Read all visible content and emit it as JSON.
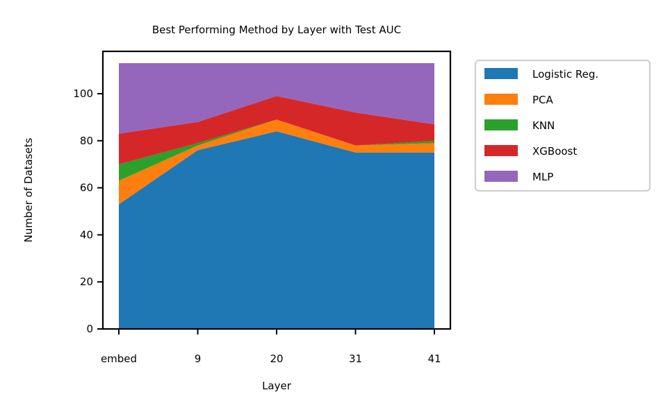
{
  "chart_data": {
    "type": "area",
    "stacked": true,
    "title": "Best Performing Method by Layer with Test AUC",
    "xlabel": "Layer",
    "ylabel": "Number of Datasets",
    "categories": [
      "embed",
      "9",
      "20",
      "31",
      "41"
    ],
    "ylim": [
      0,
      118
    ],
    "yticks": [
      0,
      20,
      40,
      60,
      80,
      100
    ],
    "grid": false,
    "legend_position": "outside-right",
    "series": [
      {
        "name": "Logistic Reg.",
        "color": "#1f77b4",
        "values": [
          53,
          76,
          84,
          75,
          75
        ]
      },
      {
        "name": "PCA",
        "color": "#ff7f0e",
        "values": [
          10,
          2,
          5,
          3,
          4
        ]
      },
      {
        "name": "KNN",
        "color": "#2ca02c",
        "values": [
          7,
          1,
          0,
          0,
          1
        ]
      },
      {
        "name": "XGBoost",
        "color": "#d62728",
        "values": [
          13,
          9,
          10,
          14,
          7
        ]
      },
      {
        "name": "MLP",
        "color": "#9467bd",
        "values": [
          30,
          25,
          14,
          21,
          26
        ]
      }
    ]
  }
}
